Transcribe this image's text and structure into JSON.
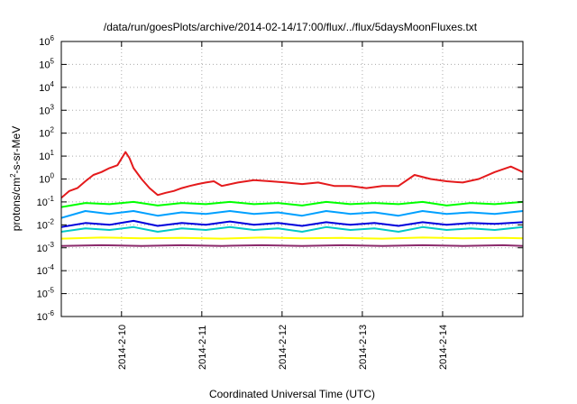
{
  "chart_data": {
    "type": "line",
    "title": "/data/run/goesPlots/archive/2014-02-14/17:00/flux/../flux/5daysMoonFluxes.txt",
    "xlabel": "Coordinated Universal Time (UTC)",
    "ylabel": "protons/cm2-s-sr-MeV",
    "yscale": "log",
    "ylim": [
      1e-06,
      1000000.0
    ],
    "xlim": [
      0,
      5.75
    ],
    "x_axis_origin": "2014-02-09 06:00 UTC",
    "x_ticks": [
      {
        "x": 0.75,
        "label": "2014-2-10"
      },
      {
        "x": 1.75,
        "label": "2014-2-11"
      },
      {
        "x": 2.75,
        "label": "2014-2-12"
      },
      {
        "x": 3.75,
        "label": "2014-2-13"
      },
      {
        "x": 4.75,
        "label": "2014-2-14"
      }
    ],
    "y_ticks": [
      {
        "value": 1e-06,
        "base": "10",
        "exp": "-6"
      },
      {
        "value": 1e-05,
        "base": "10",
        "exp": "-5"
      },
      {
        "value": 0.0001,
        "base": "10",
        "exp": "-4"
      },
      {
        "value": 0.001,
        "base": "10",
        "exp": "-3"
      },
      {
        "value": 0.01,
        "base": "10",
        "exp": "-2"
      },
      {
        "value": 0.1,
        "base": "10",
        "exp": "-1"
      },
      {
        "value": 1,
        "base": "10",
        "exp": "0"
      },
      {
        "value": 10,
        "base": "10",
        "exp": "1"
      },
      {
        "value": 100,
        "base": "10",
        "exp": "2"
      },
      {
        "value": 1000,
        "base": "10",
        "exp": "3"
      },
      {
        "value": 10000,
        "base": "10",
        "exp": "4"
      },
      {
        "value": 100000,
        "base": "10",
        "exp": "5"
      },
      {
        "value": 1000000,
        "base": "10",
        "exp": "6"
      }
    ],
    "grid": true,
    "legend": "none",
    "series": [
      {
        "color": "#e41a1c",
        "x": [
          0,
          0.1,
          0.2,
          0.3,
          0.4,
          0.5,
          0.6,
          0.7,
          0.8,
          0.85,
          0.9,
          1.0,
          1.1,
          1.2,
          1.3,
          1.4,
          1.5,
          1.6,
          1.7,
          1.8,
          1.9,
          2.0,
          2.2,
          2.4,
          2.6,
          2.8,
          3.0,
          3.2,
          3.4,
          3.6,
          3.8,
          4.0,
          4.2,
          4.4,
          4.6,
          4.8,
          5.0,
          5.2,
          5.4,
          5.6,
          5.75
        ],
        "values": [
          0.15,
          0.3,
          0.4,
          0.8,
          1.5,
          2.0,
          3.0,
          4.0,
          15,
          8,
          3,
          1.0,
          0.4,
          0.2,
          0.25,
          0.3,
          0.4,
          0.5,
          0.6,
          0.7,
          0.8,
          0.5,
          0.7,
          0.9,
          0.8,
          0.7,
          0.6,
          0.7,
          0.5,
          0.5,
          0.4,
          0.5,
          0.5,
          1.5,
          1.0,
          0.8,
          0.7,
          1.0,
          2.0,
          3.5,
          2.0
        ]
      },
      {
        "color": "#00ff00",
        "x": [
          0,
          0.3,
          0.6,
          0.9,
          1.2,
          1.5,
          1.8,
          2.1,
          2.4,
          2.7,
          3.0,
          3.3,
          3.6,
          3.9,
          4.2,
          4.5,
          4.8,
          5.1,
          5.4,
          5.75
        ],
        "values": [
          0.06,
          0.09,
          0.08,
          0.1,
          0.07,
          0.09,
          0.08,
          0.1,
          0.08,
          0.09,
          0.07,
          0.1,
          0.08,
          0.09,
          0.08,
          0.1,
          0.07,
          0.09,
          0.08,
          0.1
        ]
      },
      {
        "color": "#00a0ff",
        "x": [
          0,
          0.3,
          0.6,
          0.9,
          1.2,
          1.5,
          1.8,
          2.1,
          2.4,
          2.7,
          3.0,
          3.3,
          3.6,
          3.9,
          4.2,
          4.5,
          4.8,
          5.1,
          5.4,
          5.75
        ],
        "values": [
          0.02,
          0.04,
          0.03,
          0.04,
          0.025,
          0.035,
          0.03,
          0.04,
          0.03,
          0.035,
          0.025,
          0.04,
          0.03,
          0.035,
          0.025,
          0.04,
          0.03,
          0.035,
          0.03,
          0.04
        ]
      },
      {
        "color": "#0000dd",
        "x": [
          0,
          0.3,
          0.6,
          0.9,
          1.2,
          1.5,
          1.8,
          2.1,
          2.4,
          2.7,
          3.0,
          3.3,
          3.6,
          3.9,
          4.2,
          4.5,
          4.8,
          5.1,
          5.4,
          5.75
        ],
        "values": [
          0.008,
          0.012,
          0.01,
          0.015,
          0.009,
          0.012,
          0.01,
          0.014,
          0.01,
          0.012,
          0.009,
          0.013,
          0.01,
          0.012,
          0.009,
          0.013,
          0.01,
          0.012,
          0.011,
          0.013
        ]
      },
      {
        "color": "#00c8c8",
        "x": [
          0,
          0.3,
          0.6,
          0.9,
          1.2,
          1.5,
          1.8,
          2.1,
          2.4,
          2.7,
          3.0,
          3.3,
          3.6,
          3.9,
          4.2,
          4.5,
          4.8,
          5.1,
          5.4,
          5.75
        ],
        "values": [
          0.005,
          0.007,
          0.006,
          0.008,
          0.005,
          0.007,
          0.006,
          0.008,
          0.006,
          0.007,
          0.005,
          0.008,
          0.006,
          0.007,
          0.005,
          0.008,
          0.006,
          0.007,
          0.006,
          0.008
        ]
      },
      {
        "color": "#ffff00",
        "x": [
          0,
          0.5,
          1.0,
          1.5,
          2.0,
          2.5,
          3.0,
          3.5,
          4.0,
          4.5,
          5.0,
          5.5,
          5.75
        ],
        "values": [
          0.0025,
          0.0028,
          0.0026,
          0.0027,
          0.0025,
          0.0028,
          0.0026,
          0.0027,
          0.0025,
          0.0028,
          0.0026,
          0.0027,
          0.0026
        ]
      },
      {
        "color": "#8b2a6b",
        "x": [
          0,
          0.5,
          1.0,
          1.5,
          2.0,
          2.5,
          3.0,
          3.5,
          4.0,
          4.5,
          5.0,
          5.5,
          5.75
        ],
        "values": [
          0.0012,
          0.0013,
          0.0012,
          0.0013,
          0.0012,
          0.0013,
          0.0012,
          0.0013,
          0.0012,
          0.0013,
          0.0012,
          0.0013,
          0.0012
        ]
      }
    ]
  }
}
